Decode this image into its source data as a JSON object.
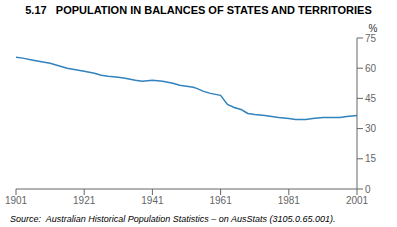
{
  "chart_data": {
    "type": "line",
    "title": "5.17   POPULATION IN BALANCES OF STATES AND TERRITORIES",
    "ylabel": "%",
    "annotations": [
      "Source:  Australian Historical Population Statistics – on AusStats (3105.0.65.001)."
    ],
    "x": [
      1901,
      1903,
      1906,
      1911,
      1914,
      1916,
      1921,
      1924,
      1926,
      1928,
      1931,
      1933,
      1936,
      1938,
      1941,
      1944,
      1947,
      1949,
      1951,
      1953,
      1954,
      1956,
      1958,
      1961,
      1963,
      1965,
      1967,
      1968,
      1969,
      1971,
      1974,
      1976,
      1978,
      1981,
      1983,
      1986,
      1988,
      1991,
      1994,
      1996,
      1998,
      2001
    ],
    "values": [
      65.5,
      65.0,
      64.0,
      62.5,
      61.0,
      60.0,
      58.5,
      57.5,
      56.5,
      56.0,
      55.5,
      55.0,
      54.0,
      53.5,
      54.0,
      53.5,
      52.5,
      51.5,
      51.0,
      50.5,
      50.0,
      48.5,
      47.5,
      46.5,
      42.0,
      40.5,
      39.5,
      38.5,
      37.5,
      37.0,
      36.5,
      36.0,
      35.5,
      35.0,
      34.5,
      34.5,
      35.0,
      35.5,
      35.5,
      35.5,
      36.0,
      36.5
    ],
    "xlim": [
      1901,
      2001
    ],
    "ylim": [
      0,
      75
    ],
    "xticks": [
      1901,
      1921,
      1941,
      1961,
      1981,
      2001
    ],
    "yticks": [
      0,
      15,
      30,
      45,
      60,
      75
    ],
    "grid": false
  }
}
